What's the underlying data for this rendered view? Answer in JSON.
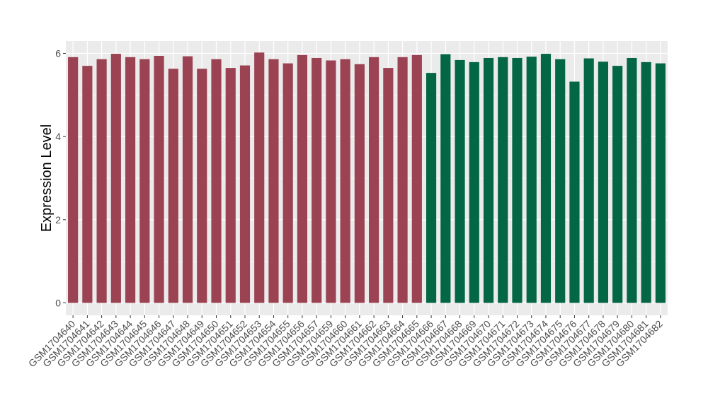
{
  "chart_data": {
    "type": "bar",
    "title": "",
    "xlabel": "",
    "ylabel": "Expression Level",
    "ylim": [
      0,
      6.25
    ],
    "yticks": [
      0,
      2,
      4,
      6
    ],
    "grid": true,
    "legend": "none",
    "colors": {
      "panel_background": "#ebebeb",
      "grid_major": "#ffffff",
      "group_a": "#9b4352",
      "group_b": "#036644",
      "axis_text": "#4d4d4d",
      "axis_title": "#000000"
    },
    "categories": [
      "GSM1704640",
      "GSM1704641",
      "GSM1704642",
      "GSM1704643",
      "GSM1704644",
      "GSM1704645",
      "GSM1704646",
      "GSM1704647",
      "GSM1704648",
      "GSM1704649",
      "GSM1704650",
      "GSM1704651",
      "GSM1704652",
      "GSM1704653",
      "GSM1704654",
      "GSM1704655",
      "GSM1704656",
      "GSM1704657",
      "GSM1704659",
      "GSM1704660",
      "GSM1704661",
      "GSM1704662",
      "GSM1704663",
      "GSM1704664",
      "GSM1704665",
      "GSM1704666",
      "GSM1704667",
      "GSM1704668",
      "GSM1704669",
      "GSM1704670",
      "GSM1704671",
      "GSM1704672",
      "GSM1704673",
      "GSM1704674",
      "GSM1704675",
      "GSM1704676",
      "GSM1704677",
      "GSM1704678",
      "GSM1704679",
      "GSM1704680",
      "GSM1704681",
      "GSM1704682"
    ],
    "values": [
      5.91,
      5.7,
      5.86,
      5.99,
      5.91,
      5.86,
      5.94,
      5.63,
      5.93,
      5.63,
      5.86,
      5.65,
      5.71,
      6.02,
      5.86,
      5.76,
      5.96,
      5.89,
      5.83,
      5.86,
      5.74,
      5.91,
      5.65,
      5.91,
      5.96,
      5.53,
      5.98,
      5.84,
      5.79,
      5.89,
      5.91,
      5.89,
      5.92,
      5.99,
      5.86,
      5.32,
      5.88,
      5.8,
      5.7,
      5.89,
      5.79,
      5.76
    ],
    "groups": [
      "a",
      "a",
      "a",
      "a",
      "a",
      "a",
      "a",
      "a",
      "a",
      "a",
      "a",
      "a",
      "a",
      "a",
      "a",
      "a",
      "a",
      "a",
      "a",
      "a",
      "a",
      "a",
      "a",
      "a",
      "a",
      "b",
      "b",
      "b",
      "b",
      "b",
      "b",
      "b",
      "b",
      "b",
      "b",
      "b",
      "b",
      "b",
      "b",
      "b",
      "b",
      "b"
    ]
  }
}
